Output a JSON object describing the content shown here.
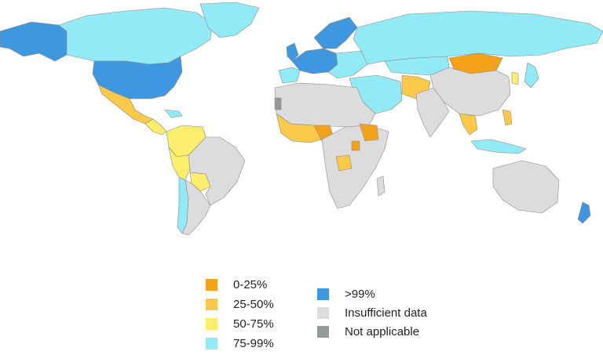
{
  "map": {
    "categories": {
      "c0_25": "#f5a21b",
      "c25_50": "#fbc84a",
      "c50_75": "#fbee6c",
      "c75_99": "#93eaf7",
      "gt99": "#3f97df",
      "insufficient": "#dcdcdc",
      "na": "#949a9a"
    }
  },
  "legend": {
    "items": [
      {
        "key": "c0_25",
        "label": "0-25%",
        "color": "#f5a21b"
      },
      {
        "key": "c25_50",
        "label": "25-50%",
        "color": "#fbc84a"
      },
      {
        "key": "c50_75",
        "label": "50-75%",
        "color": "#fbee6c"
      },
      {
        "key": "c75_99",
        "label": "75-99%",
        "color": "#93eaf7"
      },
      {
        "key": "gt99",
        "label": ">99%",
        "color": "#3f97df"
      },
      {
        "key": "insufficient",
        "label": "Insufficient data",
        "color": "#dcdcdc"
      },
      {
        "key": "na",
        "label": "Not applicable",
        "color": "#949a9a"
      }
    ]
  }
}
